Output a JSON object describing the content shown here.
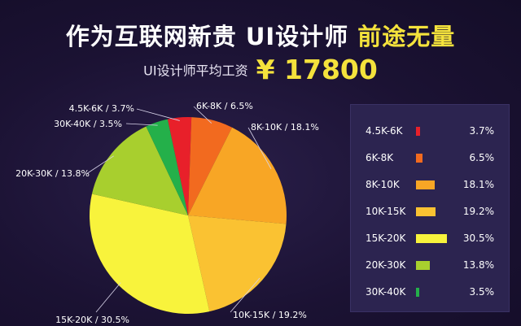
{
  "title": {
    "main": "作为互联网新贵  UI设计师 ",
    "highlight": "前途无量"
  },
  "subtitle": {
    "label": "UI设计师平均工资",
    "value": "¥ 17800"
  },
  "chart_data": {
    "type": "pie",
    "categories": [
      "4.5K-6K",
      "6K-8K",
      "8K-10K",
      "10K-15K",
      "15K-20K",
      "20K-30K",
      "30K-40K"
    ],
    "values": [
      3.7,
      6.5,
      18.1,
      19.2,
      30.5,
      13.8,
      3.5
    ],
    "value_labels": [
      "3.7%",
      "6.5%",
      "18.1%",
      "19.2%",
      "30.5%",
      "13.8%",
      "3.5%"
    ],
    "slice_labels": [
      "4.5K-6K / 3.7%",
      "6K-8K / 6.5%",
      "8K-10K / 18.1%",
      "10K-15K / 19.2%",
      "15K-20K / 30.5%",
      "20K-30K / 13.8%",
      "30K-40K / 3.5%"
    ],
    "colors": [
      "#e8202a",
      "#f26a1f",
      "#f8a625",
      "#fac232",
      "#f8f33c",
      "#a8cf2e",
      "#24b04a"
    ],
    "legend_position": "right"
  }
}
